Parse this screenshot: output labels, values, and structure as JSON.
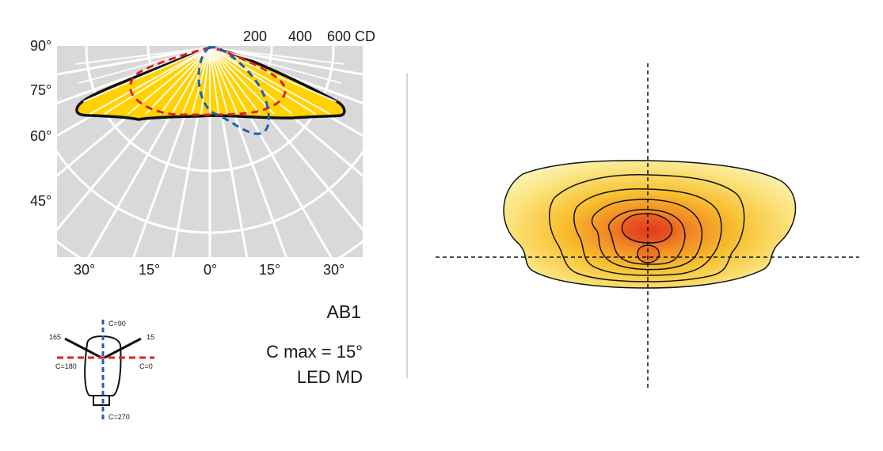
{
  "polar_chart": {
    "angle_labels_left": [
      "90°",
      "75°",
      "60°",
      "45°"
    ],
    "angle_labels_bottom": [
      "30°",
      "15°",
      "0°",
      "15°",
      "30°"
    ],
    "intensity_labels": [
      "200",
      "400",
      "600 CD"
    ],
    "colors": {
      "grid_background": "#d9d9d9",
      "grid_lines": "#ffffff",
      "fill": "#ffd200",
      "outline": "#111111",
      "c0_c180_curve": "#e02020",
      "c90_c270_curve": "#1f5fb0"
    }
  },
  "luminaire_diagram": {
    "labels": {
      "c90": "C=90",
      "c270": "C=270",
      "c180": "C=180",
      "c0": "C=0",
      "deg165": "165",
      "deg15": "15"
    }
  },
  "info": {
    "model": "AB1",
    "cmax": "C max = 15°",
    "source": "LED MD"
  },
  "isolux": {
    "colors": [
      "#fbeea0",
      "#fbd552",
      "#f8b52c",
      "#f28a24",
      "#e85a1e",
      "#e23a20"
    ]
  }
}
